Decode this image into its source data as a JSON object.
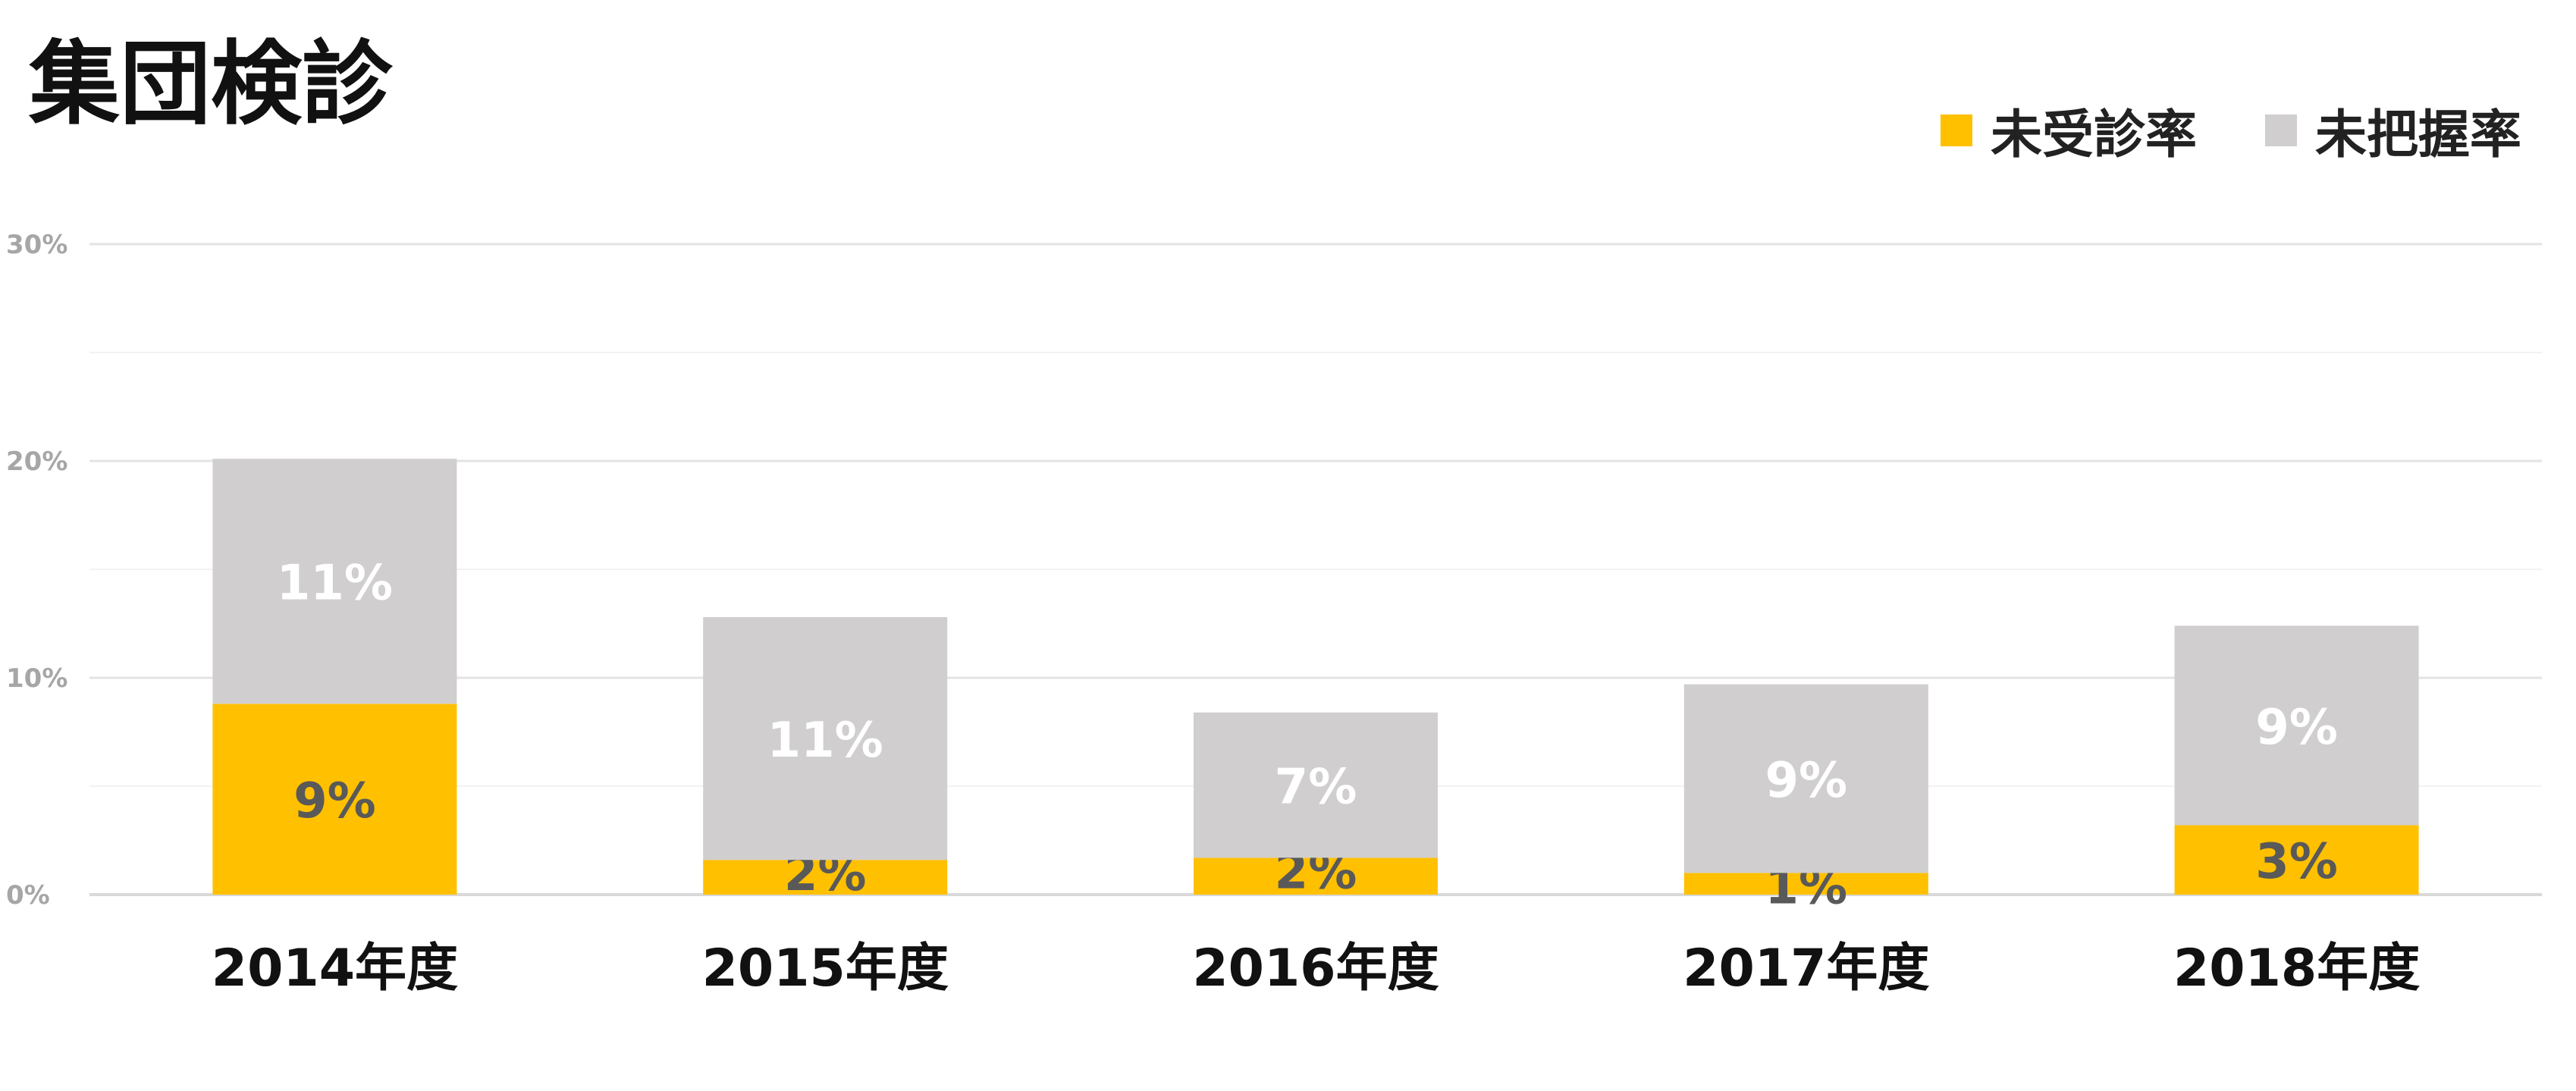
{
  "chart_data": {
    "type": "bar",
    "stacked": true,
    "title": "集団検診",
    "categories": [
      "2014年度",
      "2015年度",
      "2016年度",
      "2017年度",
      "2018年度"
    ],
    "series": [
      {
        "name": "未受診率",
        "color": "#FFC000",
        "values": [
          8.8,
          1.6,
          1.7,
          1.0,
          3.2
        ],
        "labels": [
          "9%",
          "2%",
          "2%",
          "1%",
          "3%"
        ],
        "label_color": "#595959"
      },
      {
        "name": "未把握率",
        "color": "#D0CECE",
        "values": [
          11.3,
          11.2,
          6.7,
          8.7,
          9.2
        ],
        "labels": [
          "11%",
          "11%",
          "7%",
          "9%",
          "9%"
        ],
        "label_color": "#FFFFFF"
      }
    ],
    "ylim": [
      0,
      30
    ],
    "yticks": [
      "0%",
      "10%",
      "20%",
      "30%"
    ],
    "xlabel": "",
    "ylabel": "",
    "grid": true,
    "legend_position": "top-right"
  }
}
